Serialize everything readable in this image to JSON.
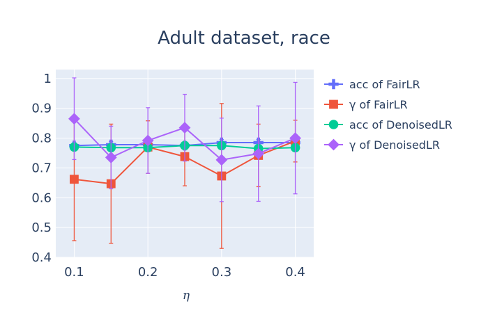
{
  "chart_data": {
    "type": "line",
    "title": "Adult dataset, race",
    "xlabel": "η",
    "ylabel": "",
    "x": [
      0.1,
      0.15,
      0.2,
      0.25,
      0.3,
      0.35,
      0.4
    ],
    "xticks": [
      "0.1",
      "0.2",
      "0.3",
      "0.4"
    ],
    "xtick_values": [
      0.1,
      0.2,
      0.3,
      0.4
    ],
    "yticks": [
      "0.4",
      "0.5",
      "0.6",
      "0.7",
      "0.8",
      "0.9",
      "1"
    ],
    "ytick_values": [
      0.4,
      0.5,
      0.6,
      0.7,
      0.8,
      0.9,
      1.0
    ],
    "xlim": [
      0.075,
      0.425
    ],
    "ylim": [
      0.4,
      1.03
    ],
    "grid": true,
    "legend_position": "right",
    "background_color": "#e5ecf6",
    "series": [
      {
        "name": "acc of FairLR",
        "marker": "cross",
        "color": "#636efa",
        "values": [
          0.775,
          0.778,
          0.778,
          0.775,
          0.785,
          0.785,
          0.785
        ],
        "error": [
          0.01,
          0.01,
          0.01,
          0.01,
          0.01,
          0.01,
          0.01
        ]
      },
      {
        "name": "γ of FairLR",
        "marker": "square",
        "color": "#ef553b",
        "values": [
          0.662,
          0.647,
          0.77,
          0.738,
          0.673,
          0.742,
          0.79
        ],
        "error": [
          0.206,
          0.2,
          0.088,
          0.098,
          0.243,
          0.105,
          0.07
        ]
      },
      {
        "name": "acc of DenoisedLR",
        "marker": "circle",
        "color": "#00cc96",
        "values": [
          0.77,
          0.768,
          0.768,
          0.775,
          0.775,
          0.765,
          0.768
        ],
        "error": [
          0.01,
          0.01,
          0.01,
          0.01,
          0.01,
          0.01,
          0.01
        ]
      },
      {
        "name": "γ of DenoisedLR",
        "marker": "diamond",
        "color": "#ab63fa",
        "values": [
          0.865,
          0.735,
          0.792,
          0.835,
          0.727,
          0.748,
          0.8
        ],
        "error": [
          0.137,
          0.105,
          0.11,
          0.112,
          0.14,
          0.16,
          0.187
        ]
      }
    ]
  }
}
